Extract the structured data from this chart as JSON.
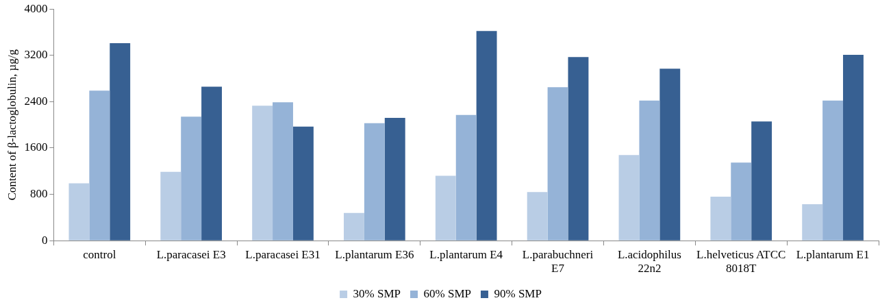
{
  "chart_data": {
    "type": "bar",
    "ylabel": "Content of β-lactoglobulin, µg/g",
    "categories": [
      "control",
      "L.paracasei E3",
      "L.paracasei E31",
      "L.plantarum E36",
      "L.plantarum E4",
      "L.parabuchneri E7",
      "L.acidophilus 22n2",
      "L.helveticus ATCC 8018T",
      "L.plantarum E1"
    ],
    "series": [
      {
        "name": "30% SMP",
        "color": "#b9cde5",
        "values": [
          990,
          1190,
          2330,
          480,
          1120,
          840,
          1480,
          760,
          630
        ]
      },
      {
        "name": "60% SMP",
        "color": "#95b3d7",
        "values": [
          2590,
          2140,
          2390,
          2030,
          2170,
          2650,
          2420,
          1350,
          2420
        ]
      },
      {
        "name": "90% SMP",
        "color": "#376092",
        "values": [
          3410,
          2660,
          1970,
          2120,
          3620,
          3170,
          2970,
          2060,
          3210
        ]
      }
    ],
    "ylim": [
      0,
      4000
    ],
    "yticks": [
      0,
      800,
      1600,
      2400,
      3200,
      4000
    ],
    "grid": false,
    "legend": "bottom"
  }
}
